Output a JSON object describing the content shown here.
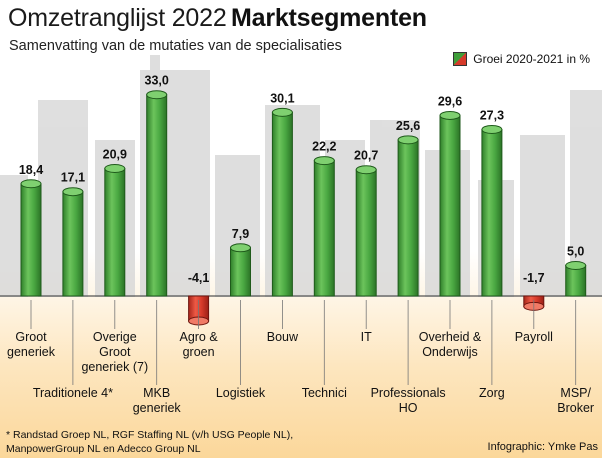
{
  "header": {
    "title_light": "Omzetranglijst 2022",
    "title_bold": "Marktsegmenten",
    "subtitle": "Samenvatting van de mutaties van de specialisaties"
  },
  "legend": {
    "label": "Groei 2020-2021 in %"
  },
  "footnote": {
    "line1": "* Randstad Groep NL, RGF Staffing NL (v/h USG People NL),",
    "line2": "ManpowerGroup NL en Adecco Group NL"
  },
  "credit": "Infographic: Ymke Pas",
  "colors": {
    "positive": "#43a33d",
    "negative": "#d63a2a",
    "baseline": "#555555"
  },
  "chart_data": {
    "type": "bar",
    "categories": [
      "Groot generiek",
      "Traditionele 4*",
      "Overige Groot generiek (7)",
      "MKB generiek",
      "Agro & groen",
      "Logistiek",
      "Bouw",
      "Technici",
      "IT",
      "Professionals HO",
      "Overheid & Onderwijs",
      "Zorg",
      "Payroll",
      "MSP/ Broker"
    ],
    "values": [
      18.4,
      17.1,
      20.9,
      33.0,
      -4.1,
      7.9,
      30.1,
      22.2,
      20.7,
      25.6,
      29.6,
      27.3,
      -1.7,
      5.0
    ],
    "value_labels": [
      "18,4",
      "17,1",
      "20,9",
      "33,0",
      "-4,1",
      "7,9",
      "30,1",
      "22,2",
      "20,7",
      "25,6",
      "29,6",
      "27,3",
      "-1,7",
      "5,0"
    ],
    "category_label_lines": [
      [
        "Groot",
        "generiek"
      ],
      [
        "Traditionele 4*"
      ],
      [
        "Overige",
        "Groot",
        "generiek (7)"
      ],
      [
        "MKB",
        "generiek"
      ],
      [
        "Agro &",
        "groen"
      ],
      [
        "Logistiek"
      ],
      [
        "Bouw"
      ],
      [
        "Technici"
      ],
      [
        "IT"
      ],
      [
        "Professionals",
        "HO"
      ],
      [
        "Overheid &",
        "Onderwijs"
      ],
      [
        "Zorg"
      ],
      [
        "Payroll"
      ],
      [
        "MSP/",
        "Broker"
      ]
    ],
    "category_label_rows": [
      "upper",
      "lower",
      "upper",
      "lower",
      "upper",
      "lower",
      "upper",
      "lower",
      "upper",
      "lower",
      "upper",
      "lower",
      "upper",
      "lower"
    ],
    "legend": [
      "Groei 2020-2021 in %"
    ],
    "ylim": [
      -6,
      34
    ],
    "grid": false
  }
}
